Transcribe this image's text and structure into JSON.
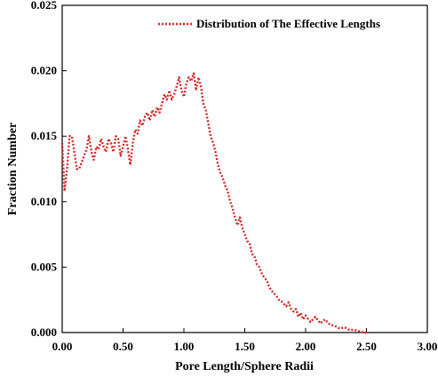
{
  "chart_data": {
    "type": "line",
    "title": "",
    "xlabel": "Pore Length/Sphere Radii",
    "ylabel": "Fraction Number",
    "xlim": [
      0.0,
      3.0
    ],
    "ylim": [
      0.0,
      0.025
    ],
    "xticks": [
      "0.00",
      "0.50",
      "1.00",
      "1.50",
      "2.00",
      "2.50",
      "3.00"
    ],
    "yticks": [
      "0.000",
      "0.005",
      "0.010",
      "0.015",
      "0.020",
      "0.025"
    ],
    "xtick_values": [
      0,
      0.5,
      1.0,
      1.5,
      2.0,
      2.5,
      3.0
    ],
    "ytick_values": [
      0,
      0.005,
      0.01,
      0.015,
      0.02,
      0.025
    ],
    "grid": false,
    "legend_position": "top-right",
    "series": [
      {
        "name": "Distribution of The Effective Lengths",
        "color": "#d62728",
        "style": "dotted",
        "x": [
          0.0,
          0.02,
          0.04,
          0.06,
          0.08,
          0.1,
          0.12,
          0.14,
          0.16,
          0.18,
          0.2,
          0.22,
          0.24,
          0.26,
          0.28,
          0.3,
          0.32,
          0.34,
          0.36,
          0.38,
          0.4,
          0.42,
          0.44,
          0.46,
          0.48,
          0.5,
          0.52,
          0.54,
          0.56,
          0.58,
          0.6,
          0.62,
          0.64,
          0.66,
          0.68,
          0.7,
          0.72,
          0.74,
          0.76,
          0.78,
          0.8,
          0.82,
          0.84,
          0.86,
          0.88,
          0.9,
          0.92,
          0.94,
          0.96,
          0.98,
          1.0,
          1.02,
          1.04,
          1.06,
          1.08,
          1.1,
          1.12,
          1.14,
          1.16,
          1.18,
          1.2,
          1.22,
          1.24,
          1.26,
          1.28,
          1.3,
          1.32,
          1.34,
          1.36,
          1.38,
          1.4,
          1.42,
          1.44,
          1.46,
          1.48,
          1.5,
          1.52,
          1.54,
          1.56,
          1.58,
          1.6,
          1.62,
          1.64,
          1.66,
          1.68,
          1.7,
          1.72,
          1.74,
          1.76,
          1.78,
          1.8,
          1.82,
          1.84,
          1.86,
          1.88,
          1.9,
          1.92,
          1.94,
          1.96,
          1.98,
          2.0,
          2.04,
          2.08,
          2.12,
          2.16,
          2.2,
          2.24,
          2.28,
          2.32,
          2.36,
          2.4,
          2.44,
          2.48,
          2.52
        ],
        "y": [
          0.0145,
          0.0108,
          0.0125,
          0.015,
          0.015,
          0.0138,
          0.0125,
          0.0125,
          0.013,
          0.0135,
          0.014,
          0.015,
          0.0138,
          0.0132,
          0.0142,
          0.014,
          0.0148,
          0.0142,
          0.0138,
          0.0148,
          0.0145,
          0.0138,
          0.015,
          0.0148,
          0.0135,
          0.0142,
          0.015,
          0.014,
          0.0128,
          0.0145,
          0.0155,
          0.0152,
          0.0162,
          0.0158,
          0.0165,
          0.0168,
          0.0162,
          0.017,
          0.0165,
          0.0172,
          0.0168,
          0.0175,
          0.0182,
          0.0178,
          0.0185,
          0.0178,
          0.0182,
          0.0188,
          0.0195,
          0.0185,
          0.018,
          0.019,
          0.0195,
          0.0192,
          0.0198,
          0.0185,
          0.0195,
          0.0188,
          0.0175,
          0.017,
          0.016,
          0.015,
          0.0145,
          0.0138,
          0.0128,
          0.0122,
          0.0118,
          0.0112,
          0.0108,
          0.01,
          0.0095,
          0.0088,
          0.0082,
          0.0088,
          0.008,
          0.0075,
          0.007,
          0.0068,
          0.006,
          0.0058,
          0.0052,
          0.005,
          0.0045,
          0.0042,
          0.004,
          0.0035,
          0.0032,
          0.003,
          0.0028,
          0.0025,
          0.0024,
          0.0022,
          0.002,
          0.0023,
          0.0018,
          0.0016,
          0.0018,
          0.0012,
          0.0015,
          0.001,
          0.0013,
          0.0008,
          0.0012,
          0.0007,
          0.001,
          0.0006,
          0.0005,
          0.0003,
          0.0004,
          0.0002,
          0.0002,
          0.0001,
          0.0,
          0.0
        ]
      }
    ]
  }
}
